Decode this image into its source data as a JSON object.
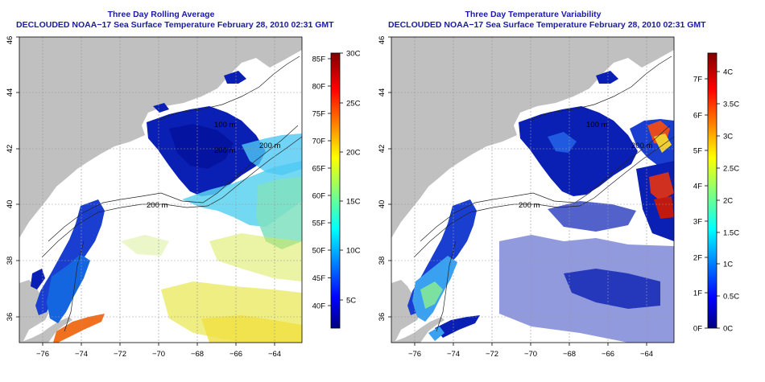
{
  "panels": [
    {
      "title1": "Three Day Rolling Average",
      "title2": "DECLOUDED NOAA−17 Sea Surface Temperature February 28, 2010 02:31 GMT",
      "colorbar": {
        "left_labels": [
          "40F",
          "45F",
          "50F",
          "55F",
          "60F",
          "65F",
          "70F",
          "75F",
          "80F",
          "85F"
        ],
        "right_labels": [
          "5C",
          "10C",
          "15C",
          "20C",
          "25C",
          "30C"
        ]
      }
    },
    {
      "title1": "Three Day Temperature Variability",
      "title2": "DECLOUDED NOAA−17 Sea Surface Temperature February 28, 2010 02:31 GMT",
      "colorbar": {
        "left_labels": [
          "0F",
          "1F",
          "2F",
          "3F",
          "4F",
          "5F",
          "6F",
          "7F"
        ],
        "right_labels": [
          "0C",
          "0.5C",
          "1C",
          "1.5C",
          "2C",
          "2.5C",
          "3C",
          "3.5C",
          "4C"
        ]
      }
    }
  ],
  "x_ticks": [
    "−76",
    "−74",
    "−72",
    "−70",
    "−68",
    "−66",
    "−64"
  ],
  "y_ticks": [
    "36",
    "38",
    "40",
    "42",
    "44",
    "46"
  ],
  "contour_labels": [
    "100 m",
    "200 m",
    "200 m",
    "200 m",
    "100 m",
    "200 m",
    "200 m"
  ],
  "colors": {
    "land": "#c0c0c0",
    "title": "#1a1aa6",
    "cold": "#0a1fb4"
  }
}
